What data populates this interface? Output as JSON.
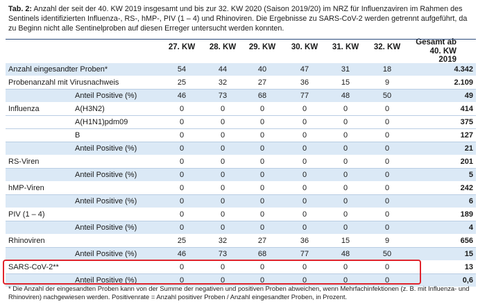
{
  "caption": {
    "label": "Tab. 2:",
    "text": "Anzahl der seit der 40. KW 2019 insgesamt und bis zur 32. KW 2020 (Saison 2019/20) im NRZ für Influenzaviren im Rahmen des Sentinels identifizierten Influenza-, RS-, hMP-, PIV (1 – 4) und Rhinoviren. Die Ergebnisse zu SARS-CoV-2 werden getrennt aufgeführt, da zu Beginn nicht alle Sentinelproben auf diesen Erreger untersucht werden konnten."
  },
  "columns": [
    "27. KW",
    "28. KW",
    "29. KW",
    "30. KW",
    "31. KW",
    "32. KW"
  ],
  "total_header": "Gesamt ab 40. KW 2019",
  "rows": [
    {
      "label": "Anzahl eingesandter Proben*",
      "sub": "",
      "values": [
        "54",
        "44",
        "40",
        "47",
        "31",
        "18"
      ],
      "total": "4.342",
      "style": "blue"
    },
    {
      "label": "Probenanzahl mit Virusnachweis",
      "sub": "",
      "values": [
        "25",
        "32",
        "27",
        "36",
        "15",
        "9"
      ],
      "total": "2.109",
      "style": "white"
    },
    {
      "label": "",
      "sub": "Anteil Positive (%)",
      "values": [
        "46",
        "73",
        "68",
        "77",
        "48",
        "50"
      ],
      "total": "49",
      "style": "blue"
    },
    {
      "label": "Influenza",
      "sub": "A(H3N2)",
      "values": [
        "0",
        "0",
        "0",
        "0",
        "0",
        "0"
      ],
      "total": "414",
      "style": "white"
    },
    {
      "label": "",
      "sub": "A(H1N1)pdm09",
      "values": [
        "0",
        "0",
        "0",
        "0",
        "0",
        "0"
      ],
      "total": "375",
      "style": "white"
    },
    {
      "label": "",
      "sub": "B",
      "values": [
        "0",
        "0",
        "0",
        "0",
        "0",
        "0"
      ],
      "total": "127",
      "style": "white"
    },
    {
      "label": "",
      "sub": "Anteil Positive (%)",
      "values": [
        "0",
        "0",
        "0",
        "0",
        "0",
        "0"
      ],
      "total": "21",
      "style": "blue"
    },
    {
      "label": "RS-Viren",
      "sub": "",
      "values": [
        "0",
        "0",
        "0",
        "0",
        "0",
        "0"
      ],
      "total": "201",
      "style": "white"
    },
    {
      "label": "",
      "sub": "Anteil Positive (%)",
      "values": [
        "0",
        "0",
        "0",
        "0",
        "0",
        "0"
      ],
      "total": "5",
      "style": "blue"
    },
    {
      "label": "hMP-Viren",
      "sub": "",
      "values": [
        "0",
        "0",
        "0",
        "0",
        "0",
        "0"
      ],
      "total": "242",
      "style": "white"
    },
    {
      "label": "",
      "sub": "Anteil Positive (%)",
      "values": [
        "0",
        "0",
        "0",
        "0",
        "0",
        "0"
      ],
      "total": "6",
      "style": "blue"
    },
    {
      "label": "PIV (1 – 4)",
      "sub": "",
      "values": [
        "0",
        "0",
        "0",
        "0",
        "0",
        "0"
      ],
      "total": "189",
      "style": "white"
    },
    {
      "label": "",
      "sub": "Anteil Positive (%)",
      "values": [
        "0",
        "0",
        "0",
        "0",
        "0",
        "0"
      ],
      "total": "4",
      "style": "blue"
    },
    {
      "label": "Rhinoviren",
      "sub": "",
      "values": [
        "25",
        "32",
        "27",
        "36",
        "15",
        "9"
      ],
      "total": "656",
      "style": "white"
    },
    {
      "label": "",
      "sub": "Anteil Positive (%)",
      "values": [
        "46",
        "73",
        "68",
        "77",
        "48",
        "50"
      ],
      "total": "15",
      "style": "blue"
    },
    {
      "label": "SARS-CoV-2**",
      "sub": "",
      "values": [
        "0",
        "0",
        "0",
        "0",
        "0",
        "0"
      ],
      "total": "13",
      "style": "white"
    },
    {
      "label": "",
      "sub": "Anteil Positive (%)",
      "values": [
        "0",
        "0",
        "0",
        "0",
        "0",
        "0"
      ],
      "total": "0,6",
      "style": "blue"
    }
  ],
  "footnote": "* Die Anzahl der eingesandten Proben kann von der Summe der negativen und positiven Proben abweichen, wenn Mehrfachinfektionen (z. B. mit Influenza- und Rhinoviren) nachgewiesen werden. Positivenrate = Anzahl positiver Proben / Anzahl eingesandter Proben, in Prozent.",
  "colors": {
    "band": "#dbe9f6",
    "highlight": "#e0242c"
  }
}
